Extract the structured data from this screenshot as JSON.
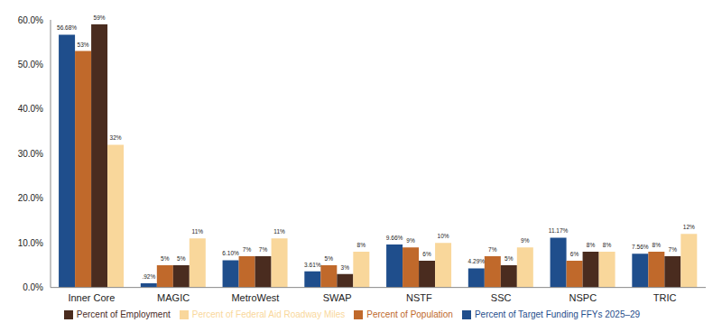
{
  "chart_data": {
    "type": "bar",
    "categories": [
      "Inner Core",
      "MAGIC",
      "MetroWest",
      "SWAP",
      "NSTF",
      "SSC",
      "NSPC",
      "TRIC"
    ],
    "series": [
      {
        "name": "Percent of Target Funding FFYs 2025–29",
        "color": "#1f4e8c",
        "values": [
          56.68,
          0.92,
          6.1,
          3.61,
          9.66,
          4.29,
          11.17,
          7.56
        ],
        "value_labels": [
          "56.68%",
          ".92%",
          "6.10%",
          "3.61%",
          "9.66%",
          "4.29%",
          "11.17%",
          "7.56%"
        ]
      },
      {
        "name": "Percent of Population",
        "color": "#c0692b",
        "values": [
          53,
          5,
          7,
          5,
          9,
          7,
          6,
          8
        ],
        "value_labels": [
          "53%",
          "5%",
          "7%",
          "5%",
          "9%",
          "7%",
          "6%",
          "8%"
        ]
      },
      {
        "name": "Percent of Employment",
        "color": "#4a2c1f",
        "values": [
          59,
          5,
          7,
          3,
          6,
          5,
          8,
          7
        ],
        "value_labels": [
          "59%",
          "5%",
          "7%",
          "3%",
          "6%",
          "5%",
          "8%",
          "7%"
        ]
      },
      {
        "name": "Percent of Federal Aid Roadway Miles",
        "color": "#f9d79b",
        "values": [
          32,
          11,
          11,
          8,
          10,
          9,
          8,
          12
        ],
        "value_labels": [
          "32%",
          "11%",
          "11%",
          "8%",
          "10%",
          "9%",
          "8%",
          "12%"
        ]
      }
    ],
    "ylim": [
      0,
      60
    ],
    "yticks": [
      {
        "value": 0,
        "label": "0.0%"
      },
      {
        "value": 10,
        "label": "10.0%"
      },
      {
        "value": 20,
        "label": "20.0%"
      },
      {
        "value": 30,
        "label": "30.0%"
      },
      {
        "value": 40,
        "label": "40.0%"
      },
      {
        "value": 50,
        "label": "50.0%"
      },
      {
        "value": 60,
        "label": "60.0%"
      }
    ],
    "grid": false,
    "legend": "bottom",
    "data_labels": true
  }
}
